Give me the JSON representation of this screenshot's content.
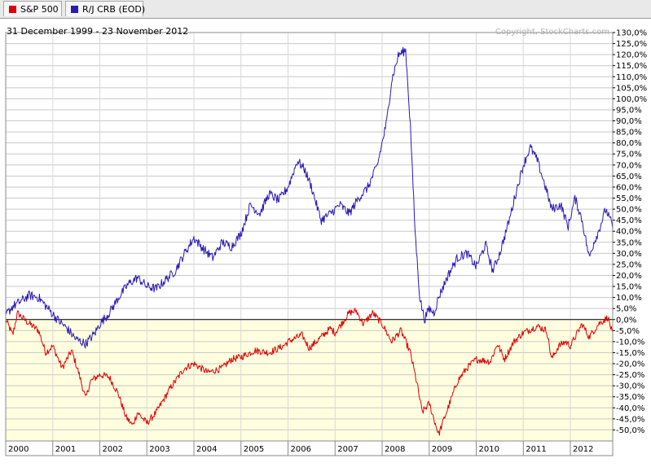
{
  "legend": [
    {
      "label": "S&P 500",
      "color": "#e00000"
    },
    {
      "label": "R/J CRB (EOD)",
      "color": "#2a1ab8"
    }
  ],
  "chart_data": {
    "type": "line",
    "date_range_label": "31 December 1999 - 23 November 2012",
    "copyright": "Copyright, StockCharts.com",
    "x_ticks": [
      "2000",
      "2001",
      "2002",
      "2003",
      "2004",
      "2005",
      "2006",
      "2007",
      "2008",
      "2009",
      "2010",
      "2011",
      "2012"
    ],
    "x_range": [
      2000.0,
      2012.9
    ],
    "ylim": [
      -55,
      130
    ],
    "y_ticks": [
      130,
      125,
      120,
      115,
      110,
      105,
      100,
      95,
      90,
      85,
      80,
      75,
      70,
      65,
      60,
      55,
      50,
      45,
      40,
      35,
      30,
      25,
      20,
      15,
      10,
      5,
      0,
      -5,
      -10,
      -15,
      -20,
      -25,
      -30,
      -35,
      -40,
      -45,
      -50
    ],
    "y_tick_labels": [
      "130,0%",
      "125,0%",
      "120,0%",
      "115,0%",
      "110,0%",
      "105,0%",
      "100,0%",
      "95,0%",
      "90,0%",
      "85,0%",
      "80,0%",
      "75,0%",
      "70,0%",
      "65,0%",
      "60,0%",
      "55,0%",
      "50,0%",
      "45,0%",
      "40,0%",
      "35,0%",
      "30,0%",
      "25,0%",
      "20,0%",
      "15,0%",
      "10,0%",
      "5,0%",
      "0,0%",
      "-5,0%",
      "-10,0%",
      "-15,0%",
      "-20,0%",
      "-25,0%",
      "-30,0%",
      "-35,0%",
      "-40,0%",
      "-45,0%",
      "-50,0%"
    ],
    "grid": true,
    "series": [
      {
        "name": "S&P 500",
        "color": "#e00000",
        "x": [
          2000.0,
          2000.15,
          2000.25,
          2000.45,
          2000.7,
          2000.85,
          2001.0,
          2001.2,
          2001.4,
          2001.55,
          2001.7,
          2001.8,
          2002.0,
          2002.2,
          2002.4,
          2002.55,
          2002.7,
          2002.8,
          2003.0,
          2003.2,
          2003.5,
          2003.8,
          2004.0,
          2004.3,
          2004.6,
          2004.8,
          2005.0,
          2005.3,
          2005.6,
          2005.9,
          2006.0,
          2006.3,
          2006.45,
          2006.6,
          2006.9,
          2007.0,
          2007.3,
          2007.45,
          2007.6,
          2007.8,
          2008.0,
          2008.2,
          2008.4,
          2008.6,
          2008.75,
          2008.85,
          2009.0,
          2009.2,
          2009.4,
          2009.6,
          2009.8,
          2010.0,
          2010.3,
          2010.45,
          2010.6,
          2010.8,
          2011.0,
          2011.3,
          2011.5,
          2011.6,
          2011.75,
          2011.9,
          2012.0,
          2012.25,
          2012.4,
          2012.6,
          2012.8,
          2012.9
        ],
        "values": [
          0,
          -7,
          3,
          -1,
          -5,
          -15,
          -12,
          -22,
          -14,
          -24,
          -36,
          -28,
          -25,
          -26,
          -34,
          -44,
          -48,
          -42,
          -47,
          -42,
          -31,
          -22,
          -20,
          -24,
          -22,
          -18,
          -17,
          -14,
          -15,
          -12,
          -10,
          -7,
          -13,
          -10,
          -4,
          -6,
          3,
          4,
          -2,
          3,
          -2,
          -10,
          -5,
          -15,
          -30,
          -42,
          -38,
          -52,
          -40,
          -28,
          -22,
          -18,
          -19,
          -11,
          -18,
          -10,
          -6,
          -3,
          -5,
          -18,
          -12,
          -10,
          -12,
          -2,
          -8,
          -2,
          1,
          -7
        ]
      },
      {
        "name": "R/J CRB (EOD)",
        "color": "#2a1ab8",
        "x": [
          2000.0,
          2000.15,
          2000.3,
          2000.5,
          2000.7,
          2000.9,
          2001.1,
          2001.3,
          2001.5,
          2001.7,
          2001.9,
          2002.0,
          2002.2,
          2002.4,
          2002.6,
          2002.8,
          2003.0,
          2003.2,
          2003.4,
          2003.6,
          2003.8,
          2004.0,
          2004.2,
          2004.4,
          2004.6,
          2004.8,
          2005.0,
          2005.2,
          2005.4,
          2005.6,
          2005.8,
          2006.0,
          2006.2,
          2006.35,
          2006.5,
          2006.7,
          2006.9,
          2007.1,
          2007.3,
          2007.5,
          2007.7,
          2007.9,
          2008.0,
          2008.1,
          2008.2,
          2008.35,
          2008.5,
          2008.6,
          2008.7,
          2008.8,
          2008.9,
          2009.0,
          2009.1,
          2009.2,
          2009.4,
          2009.6,
          2009.8,
          2010.0,
          2010.2,
          2010.35,
          2010.5,
          2010.7,
          2010.85,
          2011.0,
          2011.15,
          2011.3,
          2011.5,
          2011.6,
          2011.8,
          2011.95,
          2012.1,
          2012.25,
          2012.4,
          2012.5,
          2012.6,
          2012.75,
          2012.85,
          2012.9
        ],
        "values": [
          2,
          6,
          8,
          11,
          10,
          5,
          0,
          -4,
          -9,
          -11,
          -6,
          -2,
          3,
          10,
          16,
          19,
          15,
          14,
          18,
          22,
          30,
          37,
          32,
          28,
          35,
          33,
          39,
          52,
          48,
          57,
          54,
          60,
          72,
          68,
          60,
          45,
          48,
          52,
          48,
          55,
          60,
          70,
          80,
          90,
          108,
          120,
          122,
          88,
          40,
          10,
          0,
          5,
          3,
          10,
          20,
          28,
          30,
          24,
          34,
          22,
          30,
          45,
          58,
          70,
          78,
          72,
          58,
          50,
          52,
          42,
          55,
          45,
          28,
          35,
          40,
          50,
          45,
          42
        ]
      }
    ]
  }
}
